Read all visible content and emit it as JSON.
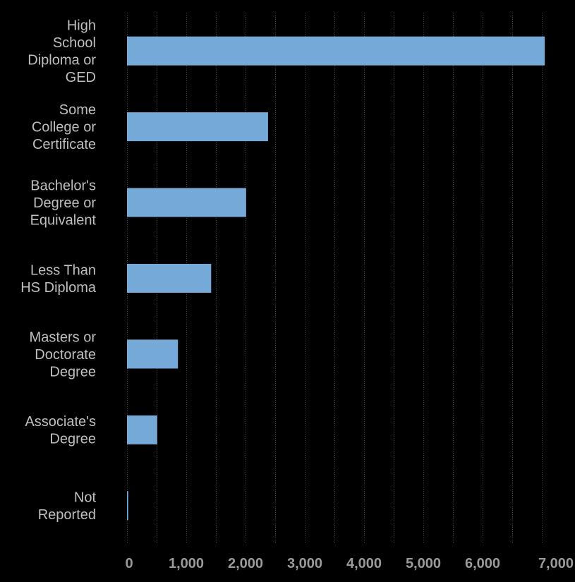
{
  "chart_data": {
    "type": "bar",
    "orientation": "horizontal",
    "categories": [
      [
        "High",
        "School",
        "Diploma or",
        "GED"
      ],
      [
        "Some",
        "College or",
        "Certificate"
      ],
      [
        "Bachelor's",
        "Degree or",
        "Equivalent"
      ],
      [
        "Less Than",
        "HS Diploma"
      ],
      [
        "Masters or",
        "Doctorate",
        "Degree"
      ],
      [
        "Associate's",
        "Degree"
      ],
      [
        "Not",
        "Reported"
      ]
    ],
    "values": [
      7050,
      2380,
      2010,
      1420,
      860,
      510,
      20
    ],
    "xlim": [
      0,
      7000
    ],
    "xticks": [
      0,
      1000,
      2000,
      3000,
      4000,
      5000,
      6000,
      7000
    ],
    "xtick_labels": [
      "0",
      "1,000",
      "2,000",
      "3,000",
      "4,000",
      "5,000",
      "6,000",
      "7,000"
    ],
    "grid": true,
    "title": "",
    "xlabel": "",
    "ylabel": "",
    "colors": {
      "bar": "#74a9d8",
      "background": "#000000",
      "grid": "#4a4a4a",
      "category_text": "#bfbfbf",
      "tick_text": "#9a9a9a"
    }
  }
}
